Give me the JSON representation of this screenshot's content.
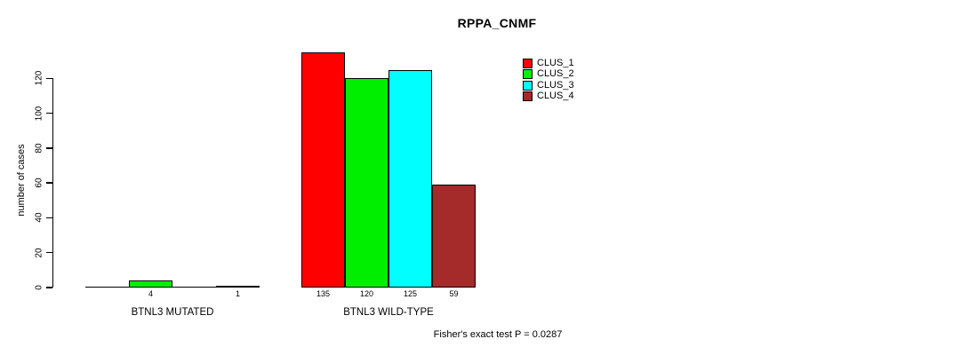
{
  "chart_data": {
    "type": "bar",
    "title": "RPPA_CNMF",
    "ylabel": "number of cases",
    "yticks": [
      0,
      20,
      40,
      60,
      80,
      100,
      120
    ],
    "ylim": [
      0,
      137
    ],
    "grid": false,
    "legend_position": "top-right",
    "categories": [
      "BTNL3 MUTATED",
      "BTNL3 WILD-TYPE"
    ],
    "series": [
      {
        "name": "CLUS_1",
        "color": "#ff0000",
        "values": [
          0,
          135
        ]
      },
      {
        "name": "CLUS_2",
        "color": "#00ee00",
        "values": [
          4,
          120
        ]
      },
      {
        "name": "CLUS_3",
        "color": "#00ffff",
        "values": [
          0,
          125
        ]
      },
      {
        "name": "CLUS_4",
        "color": "#a52a2a",
        "values": [
          1,
          59
        ]
      }
    ],
    "bar_value_labels_shown": true,
    "footnote": "Fisher's exact test P = 0.0287"
  }
}
